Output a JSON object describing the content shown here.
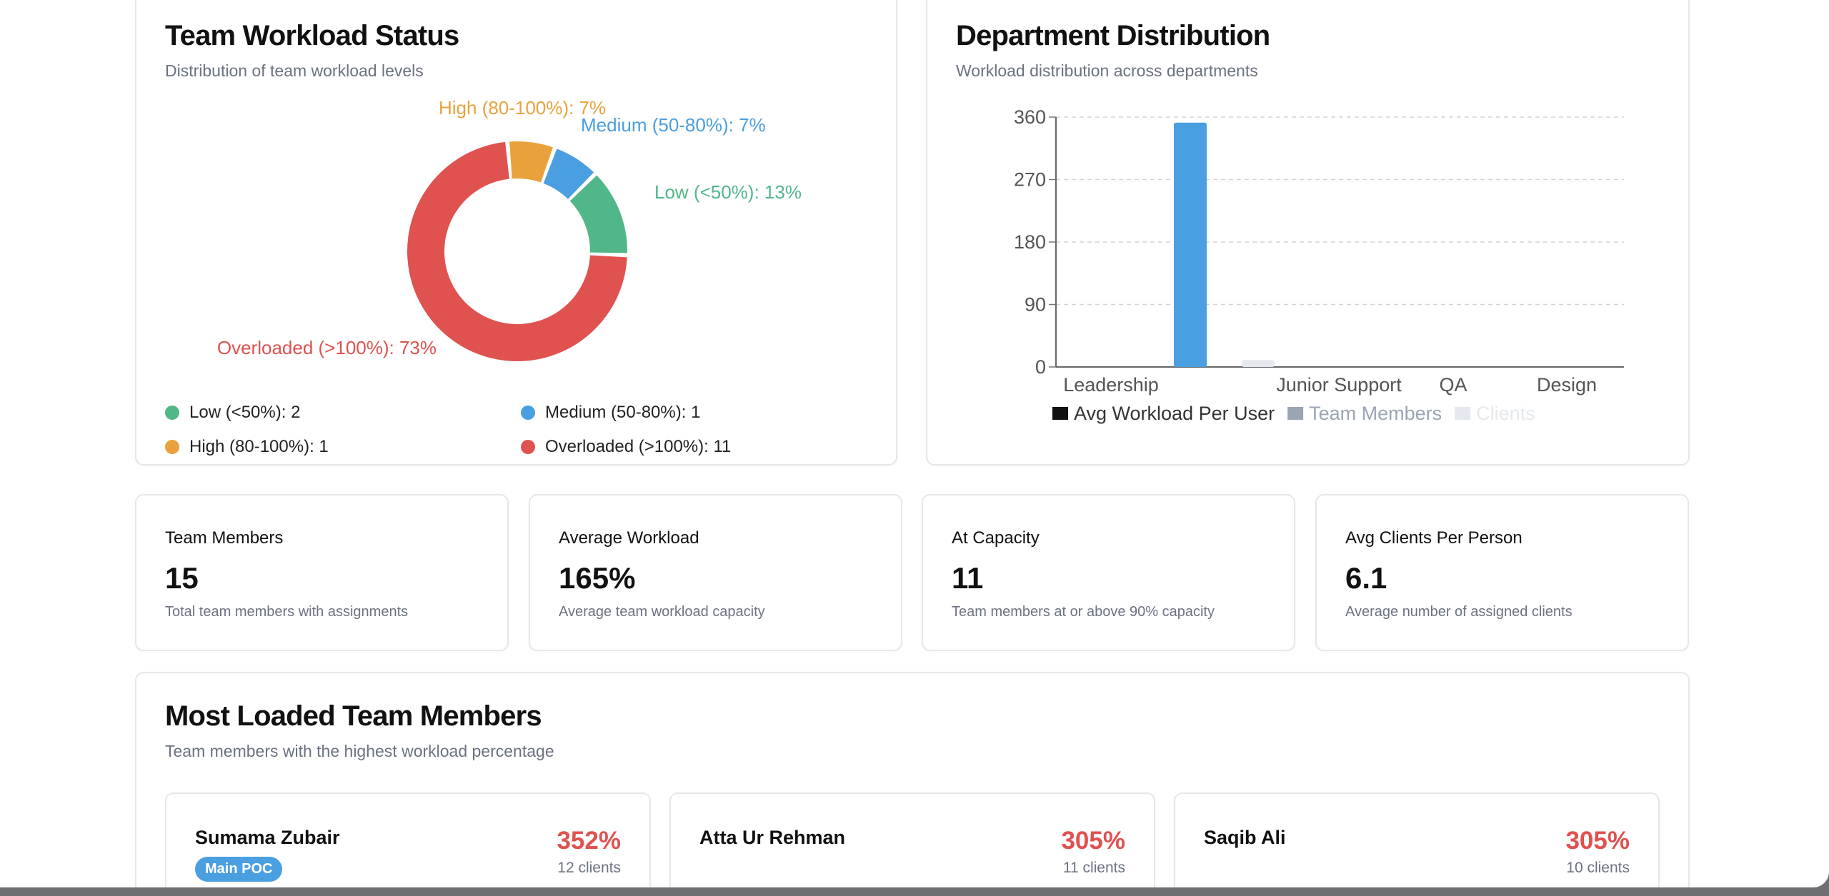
{
  "workload_status": {
    "title": "Team Workload Status",
    "subtitle": "Distribution of team workload levels",
    "legend": [
      {
        "label": "Low (<50%): 2",
        "color": "#52b788"
      },
      {
        "label": "Medium (50-80%): 1",
        "color": "#4a9fe0"
      },
      {
        "label": "High (80-100%): 1",
        "color": "#e9a23b"
      },
      {
        "label": "Overloaded (>100%): 11",
        "color": "#e0524f"
      }
    ]
  },
  "department": {
    "title": "Department Distribution",
    "subtitle": "Workload distribution across departments"
  },
  "stats": [
    {
      "label": "Team Members",
      "value": "15",
      "desc": "Total team members with assignments"
    },
    {
      "label": "Average Workload",
      "value": "165%",
      "desc": "Average team workload capacity"
    },
    {
      "label": "At Capacity",
      "value": "11",
      "desc": "Team members at or above 90% capacity"
    },
    {
      "label": "Avg Clients Per Person",
      "value": "6.1",
      "desc": "Average number of assigned clients"
    }
  ],
  "most_loaded": {
    "title": "Most Loaded Team Members",
    "subtitle": "Team members with the highest workload percentage",
    "members": [
      {
        "name": "Sumama Zubair",
        "percent": "352%",
        "clients": "12 clients",
        "badge": "Main POC"
      },
      {
        "name": "Atta Ur Rehman",
        "percent": "305%",
        "clients": "11 clients"
      },
      {
        "name": "Saqib Ali",
        "percent": "305%",
        "clients": "10 clients"
      }
    ]
  },
  "chart_data": [
    {
      "type": "pie",
      "labels": [
        "Low (<50%)",
        "Medium (50-80%)",
        "High (80-100%)",
        "Overloaded (>100%)"
      ],
      "values": [
        13,
        7,
        7,
        73
      ],
      "data_labels": [
        "Low (<50%): 13%",
        "Medium (50-80%): 7%",
        "High (80-100%): 7%",
        "Overloaded (>100%): 73%"
      ],
      "colors": [
        "#52b788",
        "#4a9fe0",
        "#e9a23b",
        "#e0524f"
      ]
    },
    {
      "type": "bar",
      "categories": [
        "Leadership",
        "",
        "Junior Support",
        "QA",
        "Design"
      ],
      "series": [
        {
          "name": "Avg Workload Per User",
          "values": [
            0,
            352,
            0,
            0,
            0
          ],
          "color": "#4a9fe0"
        },
        {
          "name": "Team Members",
          "values": [
            0,
            0,
            0,
            0,
            0
          ],
          "color": "#9aa5b4"
        },
        {
          "name": "Clients",
          "values": [
            0,
            10,
            0,
            0,
            0
          ],
          "color": "#e5e8ee"
        }
      ],
      "yticks": [
        "0",
        "90",
        "180",
        "270",
        "360"
      ],
      "ylim": [
        0,
        360
      ],
      "legend_colors": [
        "#111111",
        "#9aa5b4",
        "#e5e8ee"
      ],
      "legend_text_colors": [
        "#333333",
        "#9aa5b4",
        "#e5e8ee"
      ]
    }
  ]
}
